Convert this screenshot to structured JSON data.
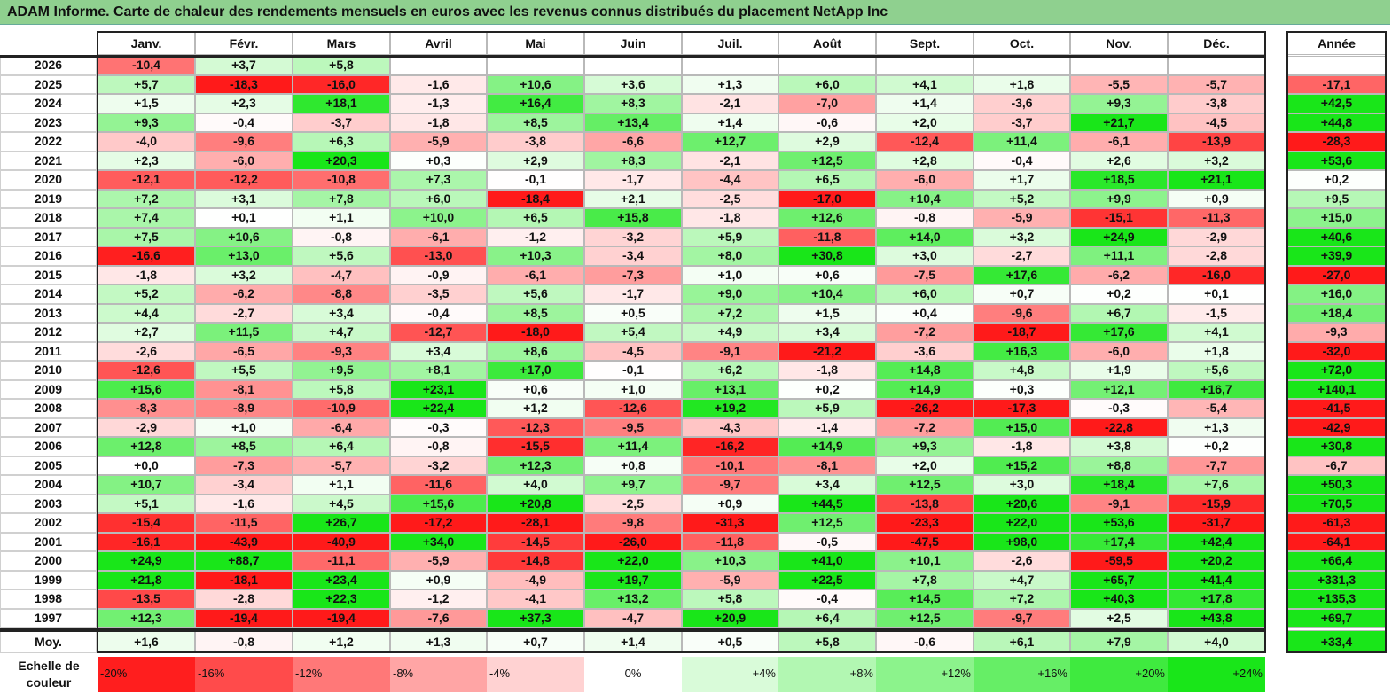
{
  "title": "ADAM Informe. Carte de chaleur des rendements mensuels en euros avec les revenus connus distribués du placement NetApp Inc",
  "chart_data": {
    "type": "heatmap",
    "title": "ADAM Informe. Carte de chaleur des rendements mensuels en euros avec les revenus connus distribués du placement NetApp Inc",
    "months": [
      "Janv.",
      "Févr.",
      "Mars",
      "Avril",
      "Mai",
      "Juin",
      "Juil.",
      "Août",
      "Sept.",
      "Oct.",
      "Nov.",
      "Déc."
    ],
    "year_header": "Année",
    "avg_label": "Moy.",
    "rows": [
      {
        "year": "2026",
        "values": [
          "-10,4",
          "+3,7",
          "+5,8",
          "",
          "",
          "",
          "",
          "",
          "",
          "",
          "",
          ""
        ],
        "annual": ""
      },
      {
        "year": "2025",
        "values": [
          "+5,7",
          "-18,3",
          "-16,0",
          "-1,6",
          "+10,6",
          "+3,6",
          "+1,3",
          "+6,0",
          "+4,1",
          "+1,8",
          "-5,5",
          "-5,7"
        ],
        "annual": "-17,1"
      },
      {
        "year": "2024",
        "values": [
          "+1,5",
          "+2,3",
          "+18,1",
          "-1,3",
          "+16,4",
          "+8,3",
          "-2,1",
          "-7,0",
          "+1,4",
          "-3,6",
          "+9,3",
          "-3,8"
        ],
        "annual": "+42,5"
      },
      {
        "year": "2023",
        "values": [
          "+9,3",
          "-0,4",
          "-3,7",
          "-1,8",
          "+8,5",
          "+13,4",
          "+1,4",
          "-0,6",
          "+2,0",
          "-3,7",
          "+21,7",
          "-4,5"
        ],
        "annual": "+44,8"
      },
      {
        "year": "2022",
        "values": [
          "-4,0",
          "-9,6",
          "+6,3",
          "-5,9",
          "-3,8",
          "-6,6",
          "+12,7",
          "+2,9",
          "-12,4",
          "+11,4",
          "-6,1",
          "-13,9"
        ],
        "annual": "-28,3"
      },
      {
        "year": "2021",
        "values": [
          "+2,3",
          "-6,0",
          "+20,3",
          "+0,3",
          "+2,9",
          "+8,3",
          "-2,1",
          "+12,5",
          "+2,8",
          "-0,4",
          "+2,6",
          "+3,2"
        ],
        "annual": "+53,6"
      },
      {
        "year": "2020",
        "values": [
          "-12,1",
          "-12,2",
          "-10,8",
          "+7,3",
          "-0,1",
          "-1,7",
          "-4,4",
          "+6,5",
          "-6,0",
          "+1,7",
          "+18,5",
          "+21,1"
        ],
        "annual": "+0,2"
      },
      {
        "year": "2019",
        "values": [
          "+7,2",
          "+3,1",
          "+7,8",
          "+6,0",
          "-18,4",
          "+2,1",
          "-2,5",
          "-17,0",
          "+10,4",
          "+5,2",
          "+9,9",
          "+0,9"
        ],
        "annual": "+9,5"
      },
      {
        "year": "2018",
        "values": [
          "+7,4",
          "+0,1",
          "+1,1",
          "+10,0",
          "+6,5",
          "+15,8",
          "-1,8",
          "+12,6",
          "-0,8",
          "-5,9",
          "-15,1",
          "-11,3"
        ],
        "annual": "+15,0"
      },
      {
        "year": "2017",
        "values": [
          "+7,5",
          "+10,6",
          "-0,8",
          "-6,1",
          "-1,2",
          "-3,2",
          "+5,9",
          "-11,8",
          "+14,0",
          "+3,2",
          "+24,9",
          "-2,9"
        ],
        "annual": "+40,6"
      },
      {
        "year": "2016",
        "values": [
          "-16,6",
          "+13,0",
          "+5,6",
          "-13,0",
          "+10,3",
          "-3,4",
          "+8,0",
          "+30,8",
          "+3,0",
          "-2,7",
          "+11,1",
          "-2,8"
        ],
        "annual": "+39,9"
      },
      {
        "year": "2015",
        "values": [
          "-1,8",
          "+3,2",
          "-4,7",
          "-0,9",
          "-6,1",
          "-7,3",
          "+1,0",
          "+0,6",
          "-7,5",
          "+17,6",
          "-6,2",
          "-16,0"
        ],
        "annual": "-27,0"
      },
      {
        "year": "2014",
        "values": [
          "+5,2",
          "-6,2",
          "-8,8",
          "-3,5",
          "+5,6",
          "-1,7",
          "+9,0",
          "+10,4",
          "+6,0",
          "+0,7",
          "+0,2",
          "+0,1"
        ],
        "annual": "+16,0"
      },
      {
        "year": "2013",
        "values": [
          "+4,4",
          "-2,7",
          "+3,4",
          "-0,4",
          "+8,5",
          "+0,5",
          "+7,2",
          "+1,5",
          "+0,4",
          "-9,6",
          "+6,7",
          "-1,5"
        ],
        "annual": "+18,4"
      },
      {
        "year": "2012",
        "values": [
          "+2,7",
          "+11,5",
          "+4,7",
          "-12,7",
          "-18,0",
          "+5,4",
          "+4,9",
          "+3,4",
          "-7,2",
          "-18,7",
          "+17,6",
          "+4,1"
        ],
        "annual": "-9,3"
      },
      {
        "year": "2011",
        "values": [
          "-2,6",
          "-6,5",
          "-9,3",
          "+3,4",
          "+8,6",
          "-4,5",
          "-9,1",
          "-21,2",
          "-3,6",
          "+16,3",
          "-6,0",
          "+1,8"
        ],
        "annual": "-32,0"
      },
      {
        "year": "2010",
        "values": [
          "-12,6",
          "+5,5",
          "+9,5",
          "+8,1",
          "+17,0",
          "-0,1",
          "+6,2",
          "-1,8",
          "+14,8",
          "+4,8",
          "+1,9",
          "+5,6"
        ],
        "annual": "+72,0"
      },
      {
        "year": "2009",
        "values": [
          "+15,6",
          "-8,1",
          "+5,8",
          "+23,1",
          "+0,6",
          "+1,0",
          "+13,1",
          "+0,2",
          "+14,9",
          "+0,3",
          "+12,1",
          "+16,7"
        ],
        "annual": "+140,1"
      },
      {
        "year": "2008",
        "values": [
          "-8,3",
          "-8,9",
          "-10,9",
          "+22,4",
          "+1,2",
          "-12,6",
          "+19,2",
          "+5,9",
          "-26,2",
          "-17,3",
          "-0,3",
          "-5,4"
        ],
        "annual": "-41,5"
      },
      {
        "year": "2007",
        "values": [
          "-2,9",
          "+1,0",
          "-6,4",
          "-0,3",
          "-12,3",
          "-9,5",
          "-4,3",
          "-1,4",
          "-7,2",
          "+15,0",
          "-22,8",
          "+1,3"
        ],
        "annual": "-42,9"
      },
      {
        "year": "2006",
        "values": [
          "+12,8",
          "+8,5",
          "+6,4",
          "-0,8",
          "-15,5",
          "+11,4",
          "-16,2",
          "+14,9",
          "+9,3",
          "-1,8",
          "+3,8",
          "+0,2"
        ],
        "annual": "+30,8"
      },
      {
        "year": "2005",
        "values": [
          "+0,0",
          "-7,3",
          "-5,7",
          "-3,2",
          "+12,3",
          "+0,8",
          "-10,1",
          "-8,1",
          "+2,0",
          "+15,2",
          "+8,8",
          "-7,7"
        ],
        "annual": "-6,7"
      },
      {
        "year": "2004",
        "values": [
          "+10,7",
          "-3,4",
          "+1,1",
          "-11,6",
          "+4,0",
          "+9,7",
          "-9,7",
          "+3,4",
          "+12,5",
          "+3,0",
          "+18,4",
          "+7,6"
        ],
        "annual": "+50,3"
      },
      {
        "year": "2003",
        "values": [
          "+5,1",
          "-1,6",
          "+4,5",
          "+15,6",
          "+20,8",
          "-2,5",
          "+0,9",
          "+44,5",
          "-13,8",
          "+20,6",
          "-9,1",
          "-15,9"
        ],
        "annual": "+70,5"
      },
      {
        "year": "2002",
        "values": [
          "-15,4",
          "-11,5",
          "+26,7",
          "-17,2",
          "-28,1",
          "-9,8",
          "-31,3",
          "+12,5",
          "-23,3",
          "+22,0",
          "+53,6",
          "-31,7"
        ],
        "annual": "-61,3"
      },
      {
        "year": "2001",
        "values": [
          "-16,1",
          "-43,9",
          "-40,9",
          "+34,0",
          "-14,5",
          "-26,0",
          "-11,8",
          "-0,5",
          "-47,5",
          "+98,0",
          "+17,4",
          "+42,4"
        ],
        "annual": "-64,1"
      },
      {
        "year": "2000",
        "values": [
          "+24,9",
          "+88,7",
          "-11,1",
          "-5,9",
          "-14,8",
          "+22,0",
          "+10,3",
          "+41,0",
          "+10,1",
          "-2,6",
          "-59,5",
          "+20,2"
        ],
        "annual": "+66,4"
      },
      {
        "year": "1999",
        "values": [
          "+21,8",
          "-18,1",
          "+23,4",
          "+0,9",
          "-4,9",
          "+19,7",
          "-5,9",
          "+22,5",
          "+7,8",
          "+4,7",
          "+65,7",
          "+41,4"
        ],
        "annual": "+331,3"
      },
      {
        "year": "1998",
        "values": [
          "-13,5",
          "-2,8",
          "+22,3",
          "-1,2",
          "-4,1",
          "+13,2",
          "+5,8",
          "-0,4",
          "+14,5",
          "+7,2",
          "+40,3",
          "+17,8"
        ],
        "annual": "+135,3"
      },
      {
        "year": "1997",
        "values": [
          "+12,3",
          "-19,4",
          "-19,4",
          "-7,6",
          "+37,3",
          "-4,7",
          "+20,9",
          "+6,4",
          "+12,5",
          "-9,7",
          "+2,5",
          "+43,8"
        ],
        "annual": "+69,7"
      }
    ],
    "averages": [
      "+1,6",
      "-0,8",
      "+1,2",
      "+1,3",
      "+0,7",
      "+1,4",
      "+0,5",
      "+5,8",
      "-0,6",
      "+6,1",
      "+7,9",
      "+4,0"
    ],
    "avg_annual": "+33,4",
    "color_scale": {
      "label": "Echelle de couleur",
      "steps": [
        "-20%",
        "-16%",
        "-12%",
        "-8%",
        "-4%",
        "0%",
        "+4%",
        "+8%",
        "+12%",
        "+16%",
        "+20%",
        "+24%"
      ]
    },
    "colors": {
      "negative": "#ff1a1a",
      "neutral": "#ffffff",
      "positive": "#19e619"
    }
  }
}
